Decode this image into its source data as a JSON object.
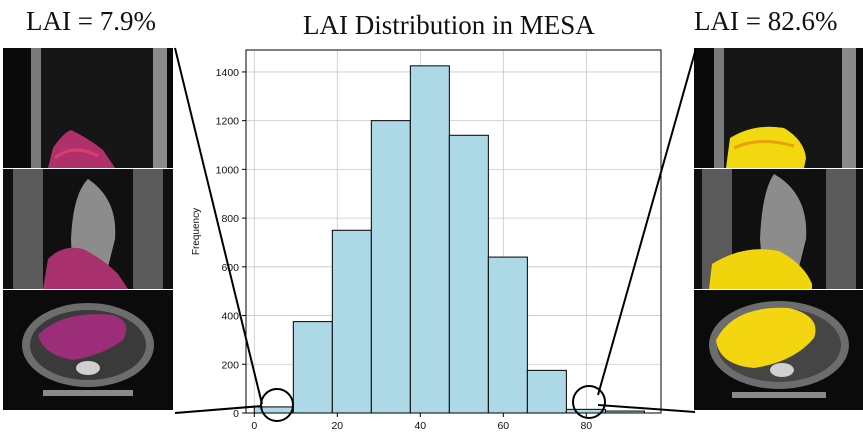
{
  "left_label": "LAI = 7.9%",
  "right_label": "LAI = 82.6%",
  "chart_data": {
    "type": "bar",
    "title": "LAI Distribution in MESA",
    "xlabel": "",
    "ylabel": "Frequency",
    "bin_edges": [
      0,
      9.4,
      18.8,
      28.2,
      37.6,
      47.0,
      56.4,
      65.8,
      75.2,
      84.6,
      94.0
    ],
    "values": [
      25,
      375,
      750,
      1200,
      1425,
      1140,
      640,
      175,
      15,
      8
    ],
    "xlim": [
      -2,
      98
    ],
    "ylim": [
      0,
      1490
    ],
    "xticks": [
      0,
      20,
      40,
      60,
      80
    ],
    "yticks": [
      0,
      200,
      400,
      600,
      800,
      1000,
      1200,
      1400
    ],
    "grid": true,
    "bar_color": "#add8e6",
    "edge_color": "#000000"
  },
  "colors": {
    "liver_low": "#c2185b",
    "liver_high": "#ffe000",
    "highlight_circle": "#000000"
  }
}
